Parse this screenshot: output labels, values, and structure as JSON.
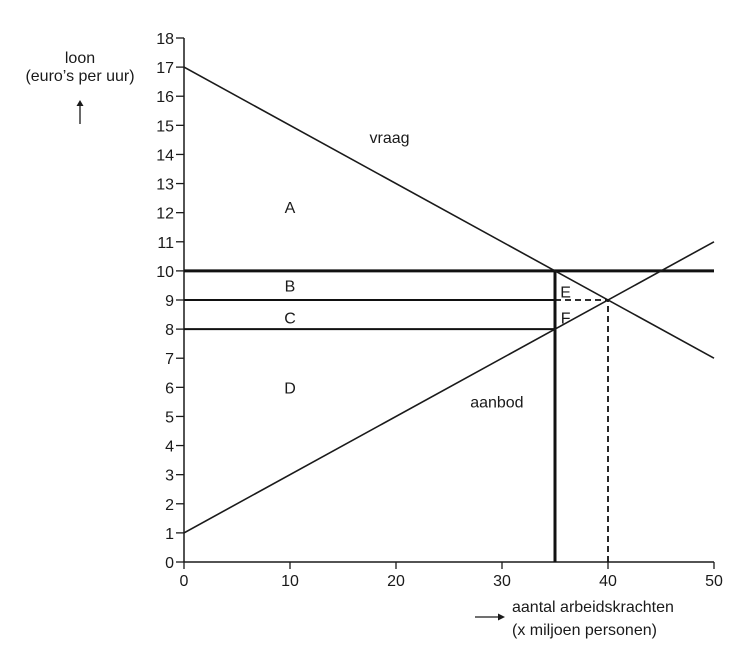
{
  "chart_data": {
    "type": "line",
    "ylabel_lines": [
      "loon",
      "(euro’s per uur)"
    ],
    "xlabel_lines": [
      "aantal arbeidskrachten",
      "(x miljoen personen)"
    ],
    "xlim": [
      0,
      50
    ],
    "ylim": [
      0,
      18
    ],
    "x_ticks": [
      0,
      10,
      20,
      30,
      40,
      50
    ],
    "y_ticks": [
      0,
      1,
      2,
      3,
      4,
      5,
      6,
      7,
      8,
      9,
      10,
      11,
      12,
      13,
      14,
      15,
      16,
      17,
      18
    ],
    "grid": false,
    "series": [
      {
        "name": "vraag",
        "points": [
          [
            0,
            17
          ],
          [
            50,
            7
          ]
        ]
      },
      {
        "name": "aanbod",
        "points": [
          [
            0,
            1
          ],
          [
            50,
            11
          ]
        ]
      }
    ],
    "horizontal_lines": [
      {
        "y": 10,
        "x_from": 0,
        "x_to": 50,
        "style": "thick"
      },
      {
        "y": 9,
        "x_from": 0,
        "x_to": 35,
        "style": "solid"
      },
      {
        "y": 9,
        "x_from": 35,
        "x_to": 40,
        "style": "dashed"
      },
      {
        "y": 8,
        "x_from": 0,
        "x_to": 35,
        "style": "solid"
      }
    ],
    "vertical_lines": [
      {
        "x": 35,
        "y_from": 0,
        "y_to": 10,
        "style": "thick"
      },
      {
        "x": 40,
        "y_from": 0,
        "y_to": 9,
        "style": "dashed"
      }
    ],
    "area_labels": [
      {
        "text": "A",
        "x": 10,
        "y": 12.2
      },
      {
        "text": "B",
        "x": 10,
        "y": 9.5
      },
      {
        "text": "C",
        "x": 10,
        "y": 8.4
      },
      {
        "text": "D",
        "x": 10,
        "y": 6
      },
      {
        "text": "E",
        "x": 36,
        "y": 9.3
      },
      {
        "text": "F",
        "x": 36,
        "y": 8.4
      }
    ],
    "curve_labels": [
      {
        "text": "vraag",
        "x": 17.5,
        "y": 14.4
      },
      {
        "text": "aanbod",
        "x": 27,
        "y": 5.3
      }
    ]
  }
}
